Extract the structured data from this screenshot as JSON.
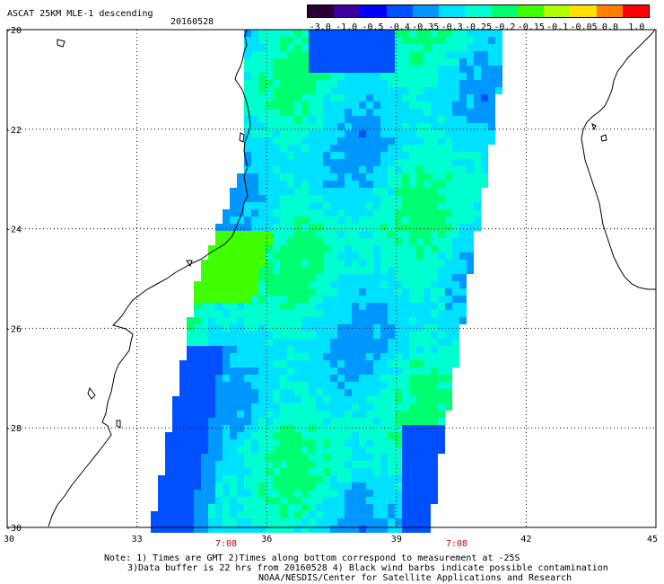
{
  "header": {
    "product": "ASCAT 25KM MLE-1 descending",
    "date": "20160528"
  },
  "colorbar": {
    "tick_labels": [
      "-3.0",
      "-1.0",
      "-0.5",
      "-0.4",
      "-0.35",
      "-0.3",
      "-0.25",
      "-0.2",
      "-0.15",
      "-0.1",
      "-0.05",
      "0.0",
      "1.0"
    ],
    "colors": [
      "#2a0033",
      "#3a00a0",
      "#0000ff",
      "#0050ff",
      "#0098ff",
      "#00e0ff",
      "#00ffd0",
      "#00ff70",
      "#40ff00",
      "#b0ff00",
      "#ffe000",
      "#ff8000",
      "#ff0000"
    ]
  },
  "map": {
    "lat_labels": [
      "-20",
      "-22",
      "-24",
      "-26",
      "-28",
      "-30"
    ],
    "lon_labels": [
      "30",
      "33",
      "36",
      "39",
      "42",
      "45"
    ],
    "time_labels": [
      "7:08",
      "7:08"
    ],
    "grid": true,
    "time_label_color": "#cc0000",
    "coast_color": "#000000"
  },
  "notes": {
    "line1": "Note: 1) Times are GMT 2)Times along bottom correspond to measurement at -25S",
    "line2": "3)Data buffer is 22 hrs from 20160528 4) Black wind barbs indicate possible contamination",
    "line3": "NOAA/NESDIS/Center for Satellite Applications and Research"
  }
}
